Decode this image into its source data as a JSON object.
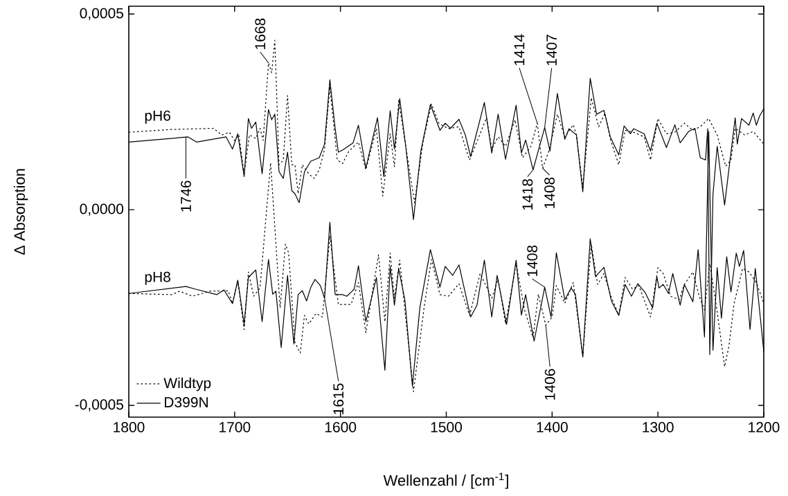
{
  "chart_data": {
    "type": "line",
    "xlabel": "Wellenzahl / [cm$^{-1}$]",
    "ylabel": "Δ Absorption",
    "xlim": [
      1800,
      1200
    ],
    "ylim": [
      -0.00053,
      0.00052
    ],
    "xticks": [
      1800,
      1700,
      1600,
      1500,
      1400,
      1300,
      1200
    ],
    "yticks": [
      {
        "value": -0.0005,
        "label": "-0,0005"
      },
      {
        "value": 0,
        "label": "0,0000"
      },
      {
        "value": 0.0005,
        "label": "0,0005"
      }
    ],
    "legend": "bottom left",
    "series": [
      {
        "name": "Wildtyp",
        "color": "#000000",
        "line_style": "dotted",
        "x": [
          1800,
          1760,
          1720,
          1712,
          1705,
          1700,
          1696,
          1691,
          1686,
          1680,
          1676,
          1673,
          1668,
          1665,
          1662,
          1658,
          1654,
          1650,
          1646,
          1643,
          1640,
          1636,
          1630,
          1625,
          1620,
          1615,
          1610,
          1603,
          1598,
          1592,
          1583,
          1576,
          1566,
          1560,
          1553,
          1549,
          1545,
          1530,
          1522,
          1514,
          1507,
          1498,
          1488,
          1478,
          1462,
          1457,
          1451,
          1444,
          1435,
          1428,
          1420,
          1414,
          1409,
          1403,
          1395,
          1388,
          1380,
          1377,
          1371,
          1363,
          1356,
          1350,
          1345,
          1337,
          1331,
          1323,
          1313,
          1307,
          1300,
          1292,
          1284,
          1275,
          1267,
          1260,
          1252,
          1244,
          1236,
          1231,
          1227,
          1218,
          1210,
          1200
        ],
        "values": [
          0.000198,
          0.000205,
          0.000208,
          0.000191,
          0.000198,
          0.000177,
          0.000191,
          9.2e-05,
          0.000191,
          0.000182,
          0.000208,
          0.000177,
          0.000375,
          0.00035,
          0.000433,
          0.000115,
          0.000127,
          0.000292,
          0.000115,
          0.000115,
          4.1e-05,
          0.000115,
          9.2e-05,
          8e-05,
          0.000102,
          0.000155,
          0.000314,
          0.000127,
          0.000118,
          0.00015,
          0.000173,
          0.000102,
          0.000208,
          3.5e-05,
          0.000194,
          0.00011,
          0.000279,
          1.8e-05,
          0.000173,
          0.00027,
          0.000221,
          0.000207,
          0.000212,
          0.000127,
          0.000235,
          0.000155,
          0.000186,
          0.000162,
          0.00023,
          0.000133,
          0.000162,
          0.000221,
          0.000106,
          0.00015,
          0.000244,
          0.000186,
          0.000217,
          0.000191,
          5.7e-05,
          0.000286,
          0.000212,
          0.000247,
          0.00018,
          0.000115,
          0.000203,
          0.000198,
          0.000186,
          0.000127,
          0.000233,
          0.000194,
          0.000198,
          0.000221,
          0.000203,
          0.000212,
          0.000233,
          0.000191,
          0.000111,
          0.000127,
          0.000208,
          0.000191,
          0.0002,
          0.000168
        ]
      },
      {
        "name": "D399N",
        "color": "#000000",
        "line_style": "solid",
        "x": [
          1800,
          1744,
          1736,
          1708,
          1702,
          1697,
          1691,
          1687,
          1684,
          1680,
          1674,
          1668,
          1665,
          1662,
          1658,
          1654,
          1650,
          1646,
          1643,
          1639,
          1634,
          1628,
          1620,
          1615,
          1610,
          1605,
          1602,
          1597,
          1588,
          1583,
          1576,
          1565,
          1559,
          1553,
          1549,
          1544,
          1538,
          1531,
          1524,
          1515,
          1506,
          1501,
          1496,
          1488,
          1482,
          1477,
          1464,
          1457,
          1451,
          1444,
          1434,
          1429,
          1425,
          1418,
          1407,
          1402,
          1395,
          1388,
          1384,
          1377,
          1371,
          1364,
          1358,
          1351,
          1345,
          1337,
          1332,
          1326,
          1323,
          1313,
          1307,
          1301,
          1292,
          1284,
          1279,
          1271,
          1265,
          1260,
          1255,
          1253,
          1251,
          1248,
          1244,
          1237,
          1233,
          1227,
          1225,
          1221,
          1214,
          1210,
          1207,
          1204,
          1200
        ],
        "values": [
          0.000173,
          0.000186,
          0.000173,
          0.000186,
          0.000155,
          0.000194,
          8.5e-05,
          0.000233,
          0.000208,
          0.000224,
          9.2e-05,
          0.000256,
          0.00023,
          0.000244,
          9.7e-05,
          8e-05,
          0.000147,
          4.9e-05,
          4.1e-05,
          1.8e-05,
          9.7e-05,
          0.000124,
          0.000133,
          0.000168,
          0.000332,
          0.000208,
          0.000147,
          0.000154,
          0.000171,
          0.000216,
          0.000106,
          0.000235,
          8.5e-05,
          0.000253,
          0.000155,
          0.000284,
          0.000155,
          -2.5e-05,
          0.00015,
          0.000269,
          0.000203,
          0.000221,
          0.000208,
          0.000231,
          0.000191,
          0.000136,
          0.000274,
          0.000145,
          0.000244,
          0.000129,
          0.000267,
          0.000145,
          0.000178,
          0.000102,
          0.00021,
          0.00015,
          0.000297,
          0.00018,
          0.000207,
          0.000191,
          4.6e-05,
          0.000336,
          0.000244,
          0.000254,
          0.000186,
          0.00014,
          0.000214,
          0.000194,
          0.000207,
          0.000194,
          0.00015,
          0.000221,
          0.000159,
          0.000217,
          0.000171,
          0.0002,
          0.000208,
          0.000133,
          0.000127,
          0.000207,
          -0.00037,
          3.9e-05,
          0.000162,
          1.2e-05,
          0.000102,
          0.000235,
          0.000168,
          0.000233,
          0.000216,
          0.000247,
          0.000216,
          0.000239,
          0.000258
        ]
      },
      {
        "color": "#000000",
        "line_style": "dotted",
        "x": [
          1800,
          1759,
          1752,
          1740,
          1723,
          1706,
          1702,
          1697,
          1691,
          1687,
          1682,
          1676,
          1666,
          1657,
          1652,
          1649,
          1643,
          1638,
          1634,
          1630,
          1623,
          1617,
          1610,
          1602,
          1590,
          1583,
          1576,
          1564,
          1558,
          1553,
          1549,
          1544,
          1531,
          1521,
          1514,
          1506,
          1498,
          1488,
          1478,
          1468,
          1457,
          1451,
          1444,
          1434,
          1426,
          1418,
          1413,
          1406,
          1400,
          1396,
          1388,
          1380,
          1371,
          1363,
          1357,
          1351,
          1344,
          1337,
          1331,
          1324,
          1318,
          1307,
          1300,
          1295,
          1288,
          1280,
          1275,
          1267,
          1261,
          1256,
          1251,
          1244,
          1237,
          1233,
          1228,
          1220,
          1214,
          1207,
          1200
        ],
        "values": [
          -0.000214,
          -0.000217,
          -0.000208,
          -0.000221,
          -0.000208,
          -0.000207,
          -0.00024,
          -0.000182,
          -0.000306,
          -0.000159,
          -0.000221,
          -0.0002,
          0.00012,
          -0.000251,
          -8.8e-05,
          -0.00011,
          -0.000339,
          -0.000366,
          -0.00027,
          -0.000292,
          -0.000265,
          -0.000274,
          -6.7e-05,
          -0.000242,
          -0.000242,
          -0.000186,
          -0.000314,
          -0.000115,
          -0.000286,
          -0.000111,
          -0.000226,
          -0.000129,
          -0.000465,
          -0.000251,
          -0.000127,
          -0.000217,
          -0.000221,
          -0.000189,
          -0.00027,
          -0.000163,
          -0.000226,
          -0.000177,
          -0.000292,
          -0.000138,
          -0.000256,
          -0.000327,
          -0.000216,
          -0.000295,
          -0.000274,
          -0.000194,
          -0.000239,
          -0.000186,
          -0.000375,
          -8.8e-05,
          -0.000191,
          -0.000163,
          -0.000224,
          -0.000269,
          -0.000173,
          -0.000203,
          -0.000194,
          -0.000274,
          -0.000148,
          -0.000163,
          -0.000221,
          -0.00023,
          -0.000191,
          -0.000159,
          -0.000221,
          -0.000256,
          -0.000138,
          -0.000261,
          -0.000401,
          -0.00035,
          -0.000239,
          -0.00015,
          -0.000159,
          -0.000186,
          -0.000239
        ]
      },
      {
        "color": "#000000",
        "line_style": "solid",
        "x": [
          1800,
          1746,
          1737,
          1717,
          1710,
          1702,
          1697,
          1691,
          1687,
          1680,
          1674,
          1668,
          1664,
          1661,
          1656,
          1650,
          1644,
          1640,
          1636,
          1632,
          1628,
          1624,
          1619,
          1615,
          1610,
          1605,
          1598,
          1594,
          1587,
          1583,
          1576,
          1566,
          1558,
          1553,
          1549,
          1545,
          1539,
          1532,
          1525,
          1515,
          1506,
          1501,
          1494,
          1488,
          1477,
          1471,
          1464,
          1457,
          1452,
          1443,
          1434,
          1429,
          1425,
          1417,
          1407,
          1401,
          1396,
          1388,
          1382,
          1378,
          1371,
          1364,
          1359,
          1351,
          1344,
          1337,
          1331,
          1325,
          1319,
          1312,
          1305,
          1301,
          1299,
          1295,
          1290,
          1286,
          1279,
          1275,
          1267,
          1262,
          1256,
          1252,
          1248,
          1244,
          1240,
          1235,
          1231,
          1226,
          1223,
          1219,
          1213,
          1208,
          1200
        ],
        "values": [
          -0.000214,
          -0.000196,
          -0.000203,
          -0.000217,
          -0.000205,
          -0.00024,
          -0.00018,
          -0.000293,
          -0.000173,
          -0.000154,
          -0.000286,
          -0.000127,
          -0.000216,
          -0.000208,
          -0.000352,
          -0.000168,
          -0.000343,
          -0.000217,
          -0.000207,
          -0.000233,
          -0.000198,
          -0.000178,
          -0.000194,
          -0.000226,
          -3.2e-05,
          -0.000217,
          -0.000217,
          -0.000221,
          -0.000203,
          -0.000143,
          -0.000286,
          -0.000173,
          -0.00041,
          -0.000145,
          -0.000244,
          -0.00015,
          -0.000233,
          -0.000451,
          -0.000251,
          -0.000102,
          -0.000198,
          -0.000145,
          -0.000168,
          -0.000141,
          -0.000274,
          -0.000244,
          -0.000129,
          -0.000274,
          -0.000168,
          -0.000293,
          -0.000129,
          -0.000269,
          -0.000217,
          -0.000336,
          -0.000198,
          -0.000274,
          -0.00011,
          -0.00023,
          -0.0002,
          -0.000216,
          -0.000376,
          -7.4e-05,
          -0.000171,
          -0.000147,
          -0.000233,
          -0.00027,
          -0.000191,
          -0.000221,
          -0.000189,
          -0.000212,
          -0.000251,
          -0.000171,
          -0.0002,
          -0.000191,
          -0.000214,
          -0.000163,
          -0.000244,
          -0.000191,
          -0.000235,
          -0.000102,
          -0.000325,
          0.0002,
          -0.000359,
          -0.000148,
          -0.000277,
          -0.00012,
          -0.00021,
          -0.000111,
          -0.000145,
          -0.000104,
          -0.000306,
          -0.00015,
          -0.000362
        ]
      }
    ],
    "annotations": [
      {
        "text": "1668",
        "x": 1668,
        "y": 0.000375
      },
      {
        "text": "1746",
        "x": 1746,
        "y": 0.000186
      },
      {
        "text": "1414",
        "x": 1414,
        "y": 0.000221
      },
      {
        "text": "1407",
        "x": 1407,
        "y": 0.00021
      },
      {
        "text": "1418",
        "x": 1418,
        "y": 0.000102
      },
      {
        "text": "1408",
        "x": 1409,
        "y": 0.000106
      },
      {
        "text": "1408",
        "x": 1407,
        "y": -0.000198
      },
      {
        "text": "1406",
        "x": 1406,
        "y": -0.000295
      },
      {
        "text": "1615",
        "x": 1615,
        "y": -0.000226
      },
      "pH6",
      "pH8"
    ]
  }
}
